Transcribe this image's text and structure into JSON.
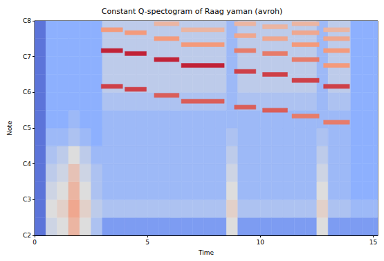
{
  "chart_data": {
    "type": "heatmap",
    "title": "Constant Q-spectogram of Raag yaman (avroh)",
    "x_label": "Time",
    "y_label": "Note",
    "xlim": [
      0,
      15.2
    ],
    "xticks": [
      0,
      5,
      10,
      15
    ],
    "ylim": [
      36,
      108
    ],
    "yticks": [
      {
        "value": 36,
        "label": "C2"
      },
      {
        "value": 48,
        "label": "C3"
      },
      {
        "value": 60,
        "label": "C4"
      },
      {
        "value": 72,
        "label": "C5"
      },
      {
        "value": 84,
        "label": "C6"
      },
      {
        "value": 96,
        "label": "C7"
      },
      {
        "value": 108,
        "label": "C8"
      }
    ],
    "grid": false,
    "color": "coolwarm",
    "zlim": [
      0,
      10
    ],
    "background": {
      "x_edges": [
        0,
        0.5,
        1,
        1.5,
        2,
        2.5,
        3,
        3.5,
        4,
        4.5,
        5,
        5.5,
        6,
        6.5,
        7,
        7.5,
        8,
        8.5,
        9,
        9.5,
        10,
        10.5,
        11,
        11.5,
        12,
        12.5,
        13,
        13.5,
        14,
        14.5,
        15,
        15.2
      ],
      "y_edges": [
        36,
        42,
        48,
        54,
        60,
        66,
        72,
        78,
        84,
        90,
        96,
        102,
        108
      ],
      "values": [
        [
          1,
          4.5,
          5,
          6.5,
          5,
          3.5,
          2,
          2,
          2,
          2,
          2,
          2,
          2,
          2,
          2,
          2,
          2,
          5,
          2,
          2,
          2,
          2,
          2,
          2,
          2,
          5,
          2,
          2,
          2,
          2,
          2
        ],
        [
          1,
          5,
          5.5,
          7,
          5.5,
          4,
          3.5,
          3.5,
          3.5,
          3.5,
          3.5,
          3.5,
          3.5,
          3.5,
          3.5,
          3.5,
          3.5,
          5.5,
          3.5,
          3.5,
          3.5,
          3.5,
          3.5,
          3.5,
          3.5,
          5.5,
          3.5,
          3.5,
          3,
          3,
          3
        ],
        [
          1,
          4.5,
          5,
          6.5,
          5,
          3.5,
          3,
          3,
          3,
          3,
          3,
          3,
          3,
          3,
          3,
          3,
          3,
          5,
          3,
          3,
          3,
          3,
          3,
          3,
          3,
          5,
          3,
          3,
          2.5,
          2.5,
          2.5
        ],
        [
          1,
          4,
          4.5,
          6,
          4.5,
          3.5,
          3,
          3,
          3,
          3,
          3,
          3,
          3,
          3,
          3,
          3,
          3,
          4.5,
          3,
          3,
          3,
          3,
          3,
          3,
          3,
          4.5,
          3,
          3,
          2.5,
          2.5,
          2.5
        ],
        [
          1,
          3.5,
          4,
          5,
          4,
          3,
          3,
          3,
          3,
          3,
          3,
          3,
          3,
          3,
          3,
          3,
          3,
          4,
          3,
          3,
          3,
          3,
          3,
          3,
          3,
          4,
          3,
          3,
          2.5,
          2.5,
          2.5
        ],
        [
          1,
          3,
          3,
          3.5,
          3,
          2.5,
          3,
          3,
          3,
          3,
          3,
          3,
          3,
          3,
          3,
          3,
          3,
          3.5,
          3,
          3,
          3,
          3,
          3,
          3,
          3,
          3.5,
          3,
          3,
          2.5,
          2.5,
          2.5
        ],
        [
          1,
          2.5,
          2.5,
          3,
          2.5,
          2.5,
          3,
          3,
          3,
          3,
          3,
          3,
          3,
          3,
          3,
          3,
          3,
          3,
          3,
          3,
          3,
          3,
          3,
          3,
          3,
          3,
          3,
          3,
          2.5,
          2.5,
          2.5
        ],
        [
          1,
          2.5,
          2.5,
          2.5,
          2.5,
          2.5,
          3.5,
          3.5,
          3.5,
          3.5,
          3.5,
          3.5,
          3.5,
          3.5,
          3.5,
          3.5,
          3.5,
          3,
          3.5,
          3.5,
          3.5,
          3.5,
          3.5,
          3.5,
          3.5,
          3,
          3.5,
          3.5,
          2.5,
          2.5,
          2.5
        ],
        [
          1,
          2.5,
          2.5,
          2.5,
          2.5,
          2.5,
          4,
          4,
          4,
          4,
          4,
          4,
          4,
          4,
          4,
          4,
          4,
          3,
          4,
          4,
          4,
          4,
          4,
          4,
          4,
          3,
          4,
          4,
          2.5,
          2.5,
          2.5
        ],
        [
          1,
          2.5,
          2.5,
          2.5,
          2.5,
          2.5,
          4,
          4,
          4,
          4,
          4,
          4,
          4,
          4,
          4,
          4,
          4,
          3,
          4,
          4,
          4,
          4,
          4,
          4,
          4,
          3,
          4,
          4,
          2.5,
          2.5,
          2.5
        ],
        [
          1,
          2.5,
          2.5,
          2.5,
          2.5,
          2.5,
          4,
          4,
          4,
          4,
          4,
          4,
          4,
          4,
          4,
          4,
          4,
          3,
          4,
          4,
          4,
          4,
          4,
          4,
          4,
          3,
          4,
          4,
          2.5,
          2.5,
          2.5
        ],
        [
          1,
          2.5,
          2.5,
          2.5,
          2.5,
          2.5,
          4,
          4,
          4,
          4,
          4,
          4,
          4,
          4,
          4,
          4,
          4,
          3,
          4,
          4,
          4,
          4,
          4,
          4,
          4,
          3,
          4,
          4,
          2.5,
          2.5,
          2.5
        ]
      ]
    },
    "notes": [
      {
        "start": 2.95,
        "end": 3.9,
        "pitches": [
          86,
          98,
          105
        ],
        "levels": [
          9,
          9.5,
          7.5
        ]
      },
      {
        "start": 4.0,
        "end": 4.95,
        "pitches": [
          85,
          97,
          104
        ],
        "levels": [
          9,
          9.5,
          7.5
        ]
      },
      {
        "start": 5.3,
        "end": 6.4,
        "pitches": [
          83,
          95,
          102,
          107
        ],
        "levels": [
          8.5,
          9.5,
          7.5,
          6.5
        ]
      },
      {
        "start": 6.5,
        "end": 8.4,
        "pitches": [
          81,
          93,
          100,
          105
        ],
        "levels": [
          8.5,
          9.5,
          7.5,
          6.5
        ]
      },
      {
        "start": 8.85,
        "end": 9.8,
        "pitches": [
          79,
          91,
          98,
          103,
          107
        ],
        "levels": [
          8.5,
          9,
          8,
          7,
          6.5
        ]
      },
      {
        "start": 10.1,
        "end": 11.2,
        "pitches": [
          78,
          90,
          97,
          102,
          106
        ],
        "levels": [
          8.5,
          9,
          8,
          7,
          6.5
        ]
      },
      {
        "start": 11.4,
        "end": 12.6,
        "pitches": [
          76,
          88,
          95,
          100,
          104,
          107
        ],
        "levels": [
          8,
          9,
          8,
          7.5,
          7,
          6.5
        ]
      },
      {
        "start": 12.8,
        "end": 13.95,
        "pitches": [
          74,
          86,
          93,
          98,
          102,
          105
        ],
        "levels": [
          8,
          9,
          7.5,
          7.5,
          7,
          6.5
        ]
      }
    ]
  }
}
